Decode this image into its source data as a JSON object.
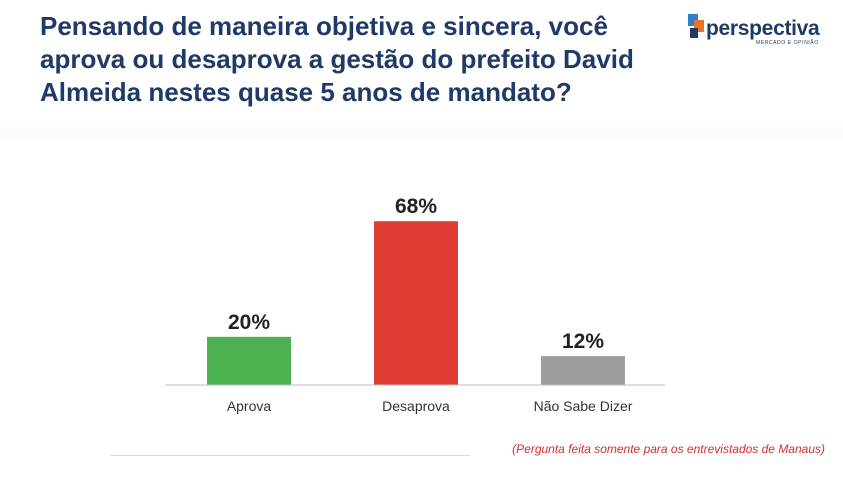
{
  "header": {
    "title_lines": [
      "Pensando de maneira objetiva e sincera, você",
      "aprova ou desaprova a gestão do prefeito David",
      "Almeida nestes quase 5 anos de mandato?"
    ]
  },
  "logo": {
    "name": "perspectiva",
    "tagline": "MERCADO E OPINIÃO",
    "icon": "perspectiva-logo-icon"
  },
  "note": "(Pergunta feita somente para os entrevistados de Manaus)",
  "chart_data": {
    "type": "bar",
    "categories": [
      "Aprova",
      "Desaprova",
      "Não Sabe Dizer"
    ],
    "values": [
      20,
      68,
      12
    ],
    "value_labels": [
      "20%",
      "68%",
      "12%"
    ],
    "colors": [
      "#4caf50",
      "#e03c36",
      "#9e9e9e"
    ],
    "ylim": [
      0,
      80
    ],
    "grid": false,
    "legend": "none"
  }
}
